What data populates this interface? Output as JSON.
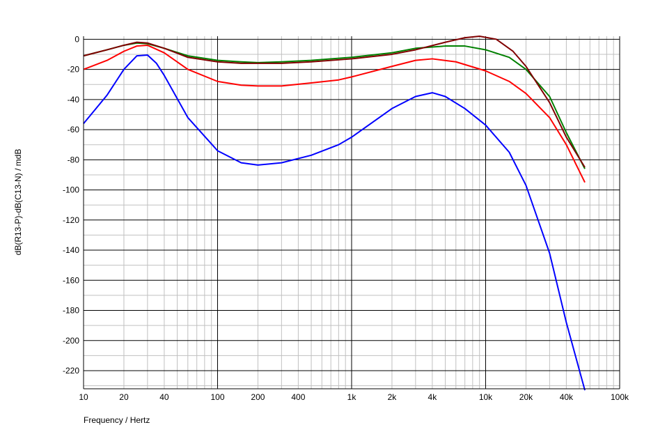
{
  "chart_data": {
    "type": "line",
    "xlabel": "Frequency / Hertz",
    "ylabel": "dB(R13-P)-dB(C13-N) / mdB",
    "xscale": "log",
    "xlim": [
      10,
      100000
    ],
    "ylim": [
      -232,
      2
    ],
    "grid": true,
    "x_ticks": [
      10,
      20,
      40,
      100,
      200,
      400,
      1000,
      2000,
      4000,
      10000,
      20000,
      40000,
      100000
    ],
    "x_tick_labels": [
      "10",
      "20",
      "40",
      "100",
      "200",
      "400",
      "1k",
      "2k",
      "4k",
      "10k",
      "20k",
      "40k",
      "100k"
    ],
    "y_ticks": [
      0,
      -20,
      -40,
      -60,
      -80,
      -100,
      -120,
      -140,
      -160,
      -180,
      -200,
      -220
    ],
    "y_tick_labels": [
      "0",
      "-20",
      "-40",
      "-60",
      "-80",
      "-100",
      "-120",
      "-140",
      "-160",
      "-180",
      "-200",
      "-220"
    ],
    "series": [
      {
        "color": "#008000",
        "points": [
          [
            10,
            -11
          ],
          [
            15,
            -7
          ],
          [
            20,
            -4
          ],
          [
            25,
            -2.5
          ],
          [
            30,
            -3
          ],
          [
            40,
            -6
          ],
          [
            60,
            -11
          ],
          [
            100,
            -14
          ],
          [
            150,
            -15
          ],
          [
            200,
            -15.5
          ],
          [
            300,
            -15
          ],
          [
            500,
            -14
          ],
          [
            1000,
            -12
          ],
          [
            2000,
            -9
          ],
          [
            3000,
            -6
          ],
          [
            5000,
            -4.5
          ],
          [
            7000,
            -4.5
          ],
          [
            10000,
            -7
          ],
          [
            15000,
            -12
          ],
          [
            20000,
            -20
          ],
          [
            30000,
            -38
          ],
          [
            40000,
            -62
          ],
          [
            55000,
            -86
          ]
        ]
      },
      {
        "color": "#800000",
        "points": [
          [
            10,
            -11
          ],
          [
            15,
            -7
          ],
          [
            20,
            -4
          ],
          [
            25,
            -2
          ],
          [
            30,
            -2.5
          ],
          [
            40,
            -6
          ],
          [
            60,
            -12
          ],
          [
            100,
            -15
          ],
          [
            150,
            -16
          ],
          [
            200,
            -16
          ],
          [
            300,
            -16
          ],
          [
            500,
            -15
          ],
          [
            1000,
            -13
          ],
          [
            2000,
            -10
          ],
          [
            3000,
            -7
          ],
          [
            5000,
            -2
          ],
          [
            7000,
            1
          ],
          [
            9000,
            2
          ],
          [
            12000,
            0
          ],
          [
            16000,
            -8
          ],
          [
            20000,
            -18
          ],
          [
            30000,
            -42
          ],
          [
            40000,
            -65
          ],
          [
            55000,
            -85
          ]
        ]
      },
      {
        "color": "#ff0000",
        "points": [
          [
            10,
            -20
          ],
          [
            15,
            -14
          ],
          [
            20,
            -8
          ],
          [
            25,
            -4.5
          ],
          [
            30,
            -4
          ],
          [
            40,
            -9
          ],
          [
            60,
            -20
          ],
          [
            100,
            -28
          ],
          [
            150,
            -30.5
          ],
          [
            200,
            -31
          ],
          [
            300,
            -31
          ],
          [
            500,
            -29
          ],
          [
            800,
            -27
          ],
          [
            1000,
            -25
          ],
          [
            2000,
            -18
          ],
          [
            3000,
            -14
          ],
          [
            4000,
            -13
          ],
          [
            6000,
            -15
          ],
          [
            10000,
            -21
          ],
          [
            15000,
            -28
          ],
          [
            20000,
            -36
          ],
          [
            30000,
            -52
          ],
          [
            40000,
            -70
          ],
          [
            55000,
            -95
          ]
        ]
      },
      {
        "color": "#0000ff",
        "points": [
          [
            10,
            -56
          ],
          [
            15,
            -37
          ],
          [
            20,
            -20
          ],
          [
            25,
            -11
          ],
          [
            30,
            -10.5
          ],
          [
            35,
            -16
          ],
          [
            40,
            -24
          ],
          [
            60,
            -52
          ],
          [
            100,
            -74
          ],
          [
            150,
            -82
          ],
          [
            200,
            -83.5
          ],
          [
            300,
            -82
          ],
          [
            500,
            -77
          ],
          [
            800,
            -70
          ],
          [
            1000,
            -65
          ],
          [
            2000,
            -46
          ],
          [
            3000,
            -38
          ],
          [
            4000,
            -35.5
          ],
          [
            5000,
            -38
          ],
          [
            7000,
            -46
          ],
          [
            10000,
            -57
          ],
          [
            15000,
            -75
          ],
          [
            20000,
            -97
          ],
          [
            30000,
            -142
          ],
          [
            40000,
            -188
          ],
          [
            55000,
            -233
          ]
        ]
      }
    ]
  }
}
